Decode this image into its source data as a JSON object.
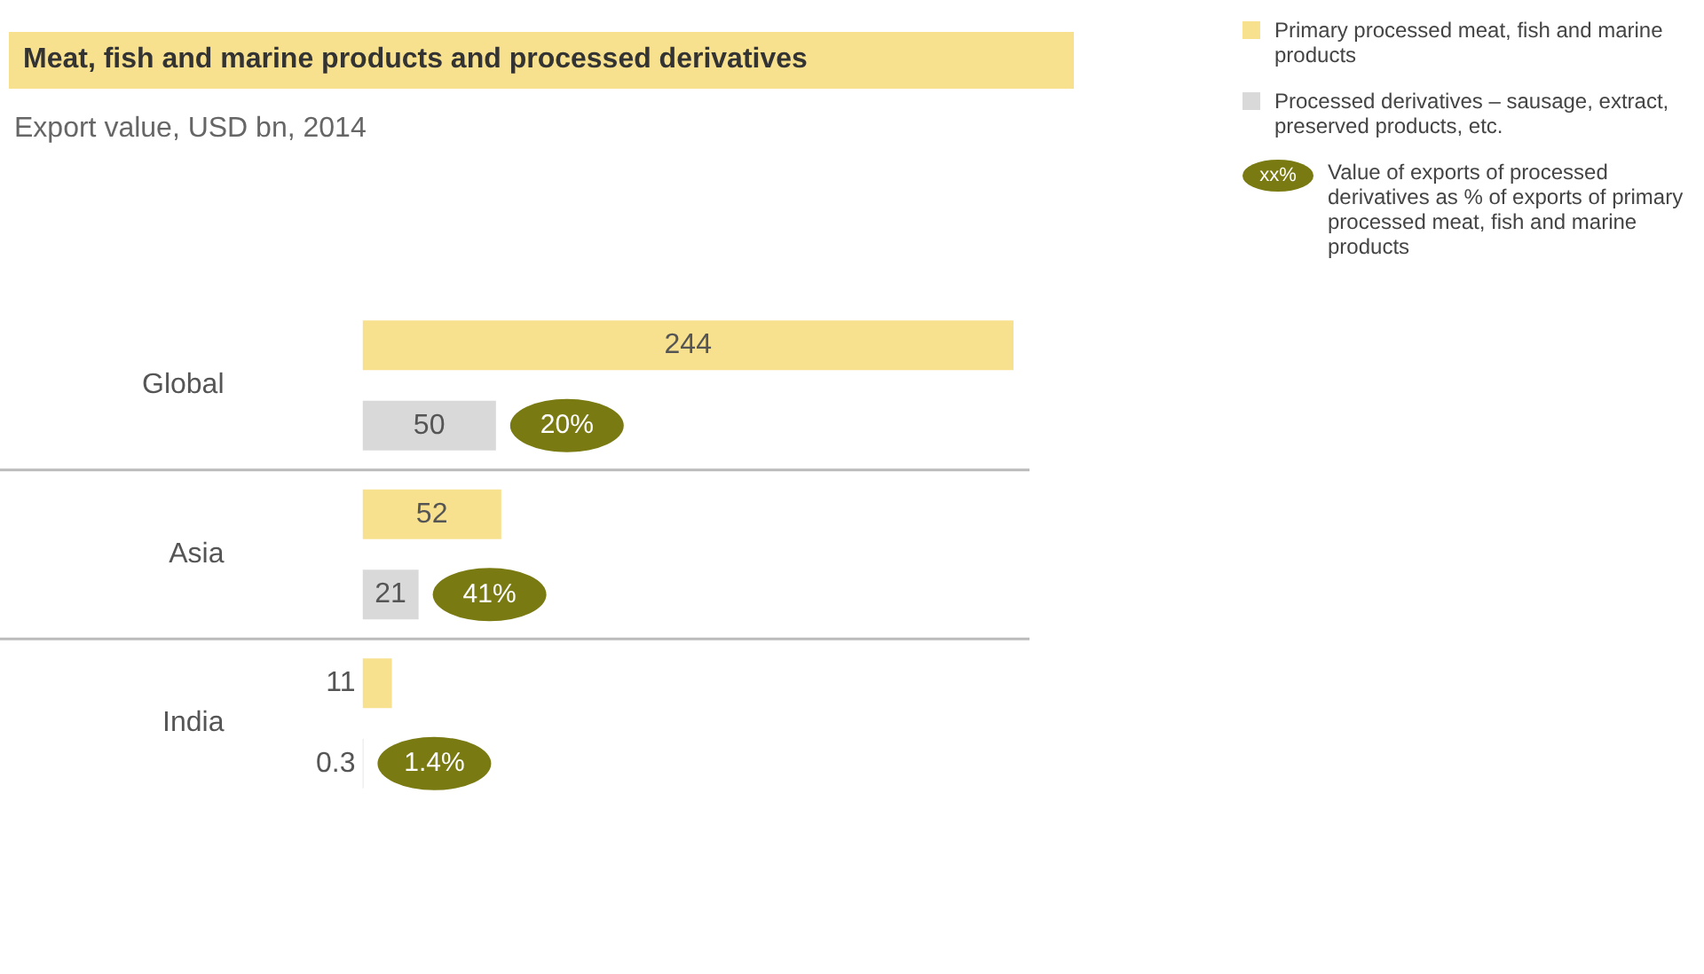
{
  "chart_data": {
    "type": "bar",
    "orientation": "horizontal",
    "title": "Meat, fish and marine products and processed derivatives",
    "subtitle": "Export value, USD bn, 2014",
    "categories": [
      "Global",
      "Asia",
      "India"
    ],
    "series": [
      {
        "name": "Primary processed meat, fish and marine products",
        "color": "#f7e08e",
        "values": [
          244,
          52,
          11
        ]
      },
      {
        "name": "Processed derivatives – sausage, extract, preserved products, etc.",
        "color": "#d9d9d9",
        "values": [
          50,
          21,
          0.3
        ]
      }
    ],
    "data_labels": true,
    "legend": "top right",
    "annotations": [
      "20%",
      "41%",
      "1.4%",
      "xx%",
      "Value of exports of processed derivatives as % of exports of primary processed meat, fish and marine products"
    ]
  }
}
